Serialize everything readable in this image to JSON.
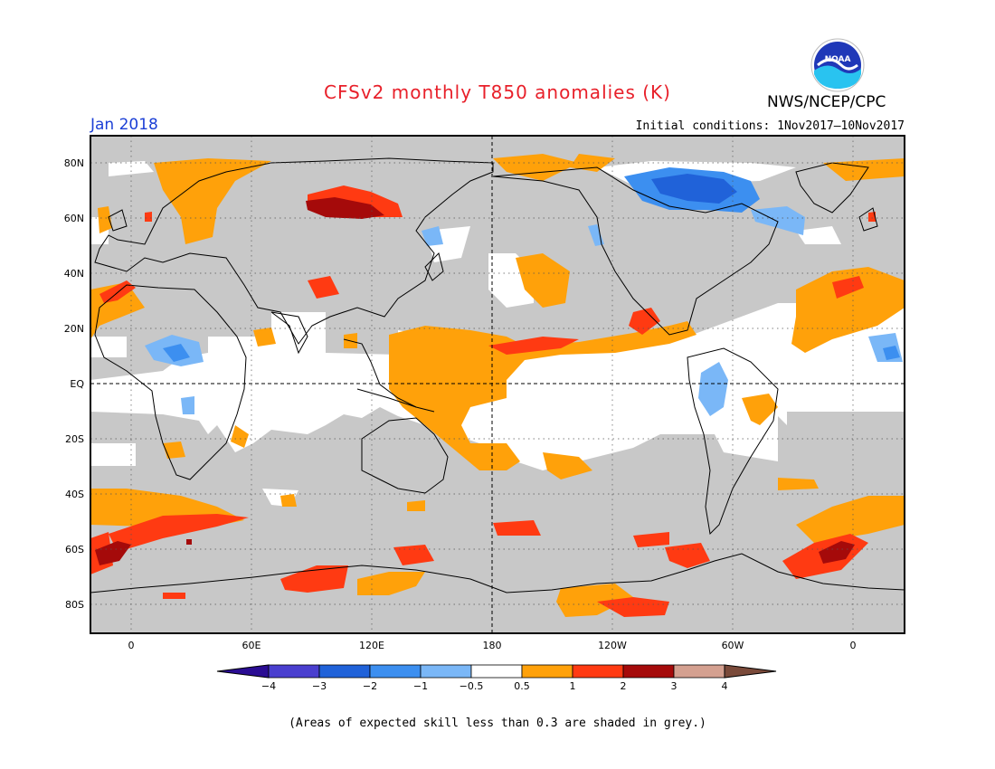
{
  "title": "CFSv2 monthly T850 anomalies (K)",
  "month_label": "Jan 2018",
  "agency": "NWS/NCEP/CPC",
  "logo_text": "NOAA",
  "initial_conditions": "Initial conditions: 1Nov2017–10Nov2017",
  "footnote": "(Areas of expected skill less than 0.3 are shaded in grey.)",
  "map": {
    "lat_labels": [
      "80N",
      "60N",
      "40N",
      "20N",
      "EQ",
      "20S",
      "40S",
      "60S",
      "80S"
    ],
    "lon_labels": [
      "0",
      "60E",
      "120E",
      "180",
      "120W",
      "60W",
      "0"
    ],
    "skill_mask_color": "#c8c8c8"
  },
  "colorbar": {
    "tick_labels": [
      "−4",
      "−3",
      "−2",
      "−1",
      "−0.5",
      "0.5",
      "1",
      "2",
      "3",
      "4"
    ],
    "colors": [
      "#2a0c93",
      "#4a3fcf",
      "#2062d9",
      "#3c8ff0",
      "#7ab7f7",
      "#ffffff",
      "#ffa10a",
      "#ff3a12",
      "#a50a0a",
      "#d4a090",
      "#7a4a3a"
    ]
  }
}
